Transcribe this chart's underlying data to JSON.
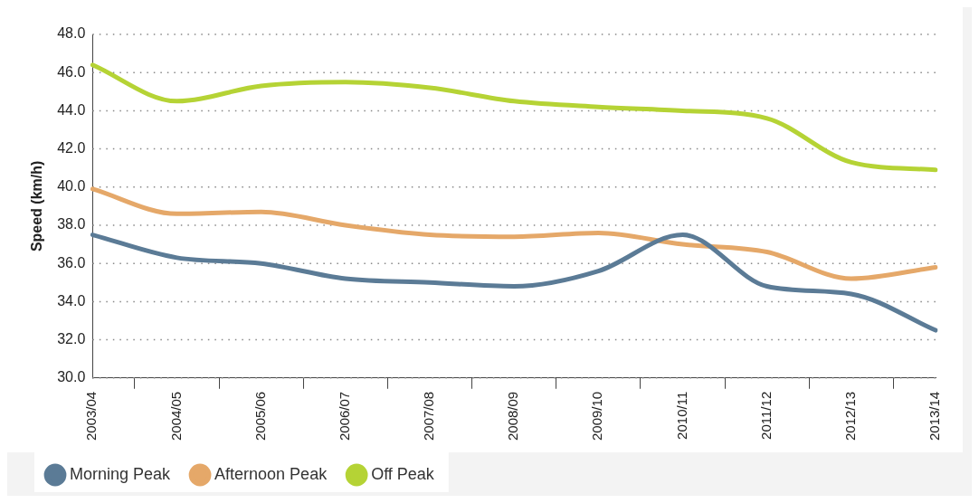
{
  "chart_data": {
    "type": "line",
    "ylabel": "Speed (km/h)",
    "categories": [
      "2003/04",
      "2004/05",
      "2005/06",
      "2006/07",
      "2007/08",
      "2008/09",
      "2009/10",
      "2010/11",
      "2011/12",
      "2012/13",
      "2013/14"
    ],
    "series": [
      {
        "name": "Morning Peak",
        "color": "#5b7b96",
        "values": [
          37.5,
          36.3,
          36.0,
          35.2,
          35.0,
          34.8,
          35.6,
          37.5,
          34.8,
          34.4,
          32.5
        ]
      },
      {
        "name": "Afternoon Peak",
        "color": "#e5a869",
        "values": [
          39.9,
          38.6,
          38.7,
          38.0,
          37.5,
          37.4,
          37.6,
          37.0,
          36.6,
          35.2,
          35.8
        ]
      },
      {
        "name": "Off Peak",
        "color": "#b5d335",
        "values": [
          46.4,
          44.5,
          45.3,
          45.5,
          45.2,
          44.5,
          44.2,
          44.0,
          43.6,
          41.3,
          40.9
        ]
      }
    ],
    "ylim": [
      30,
      48
    ],
    "yticks": [
      {
        "value": 30,
        "label": "30.0"
      },
      {
        "value": 32,
        "label": "32.0"
      },
      {
        "value": 34,
        "label": "34.0"
      },
      {
        "value": 36,
        "label": "36.0"
      },
      {
        "value": 38,
        "label": "38.0"
      },
      {
        "value": 40,
        "label": "40.0"
      },
      {
        "value": 42,
        "label": "42.0"
      },
      {
        "value": 44,
        "label": "44.0"
      },
      {
        "value": 46,
        "label": "46.0"
      },
      {
        "value": 48,
        "label": "48.0"
      }
    ],
    "grid": "y",
    "legend": "bottom",
    "marker": "none",
    "line_style": "solid"
  }
}
